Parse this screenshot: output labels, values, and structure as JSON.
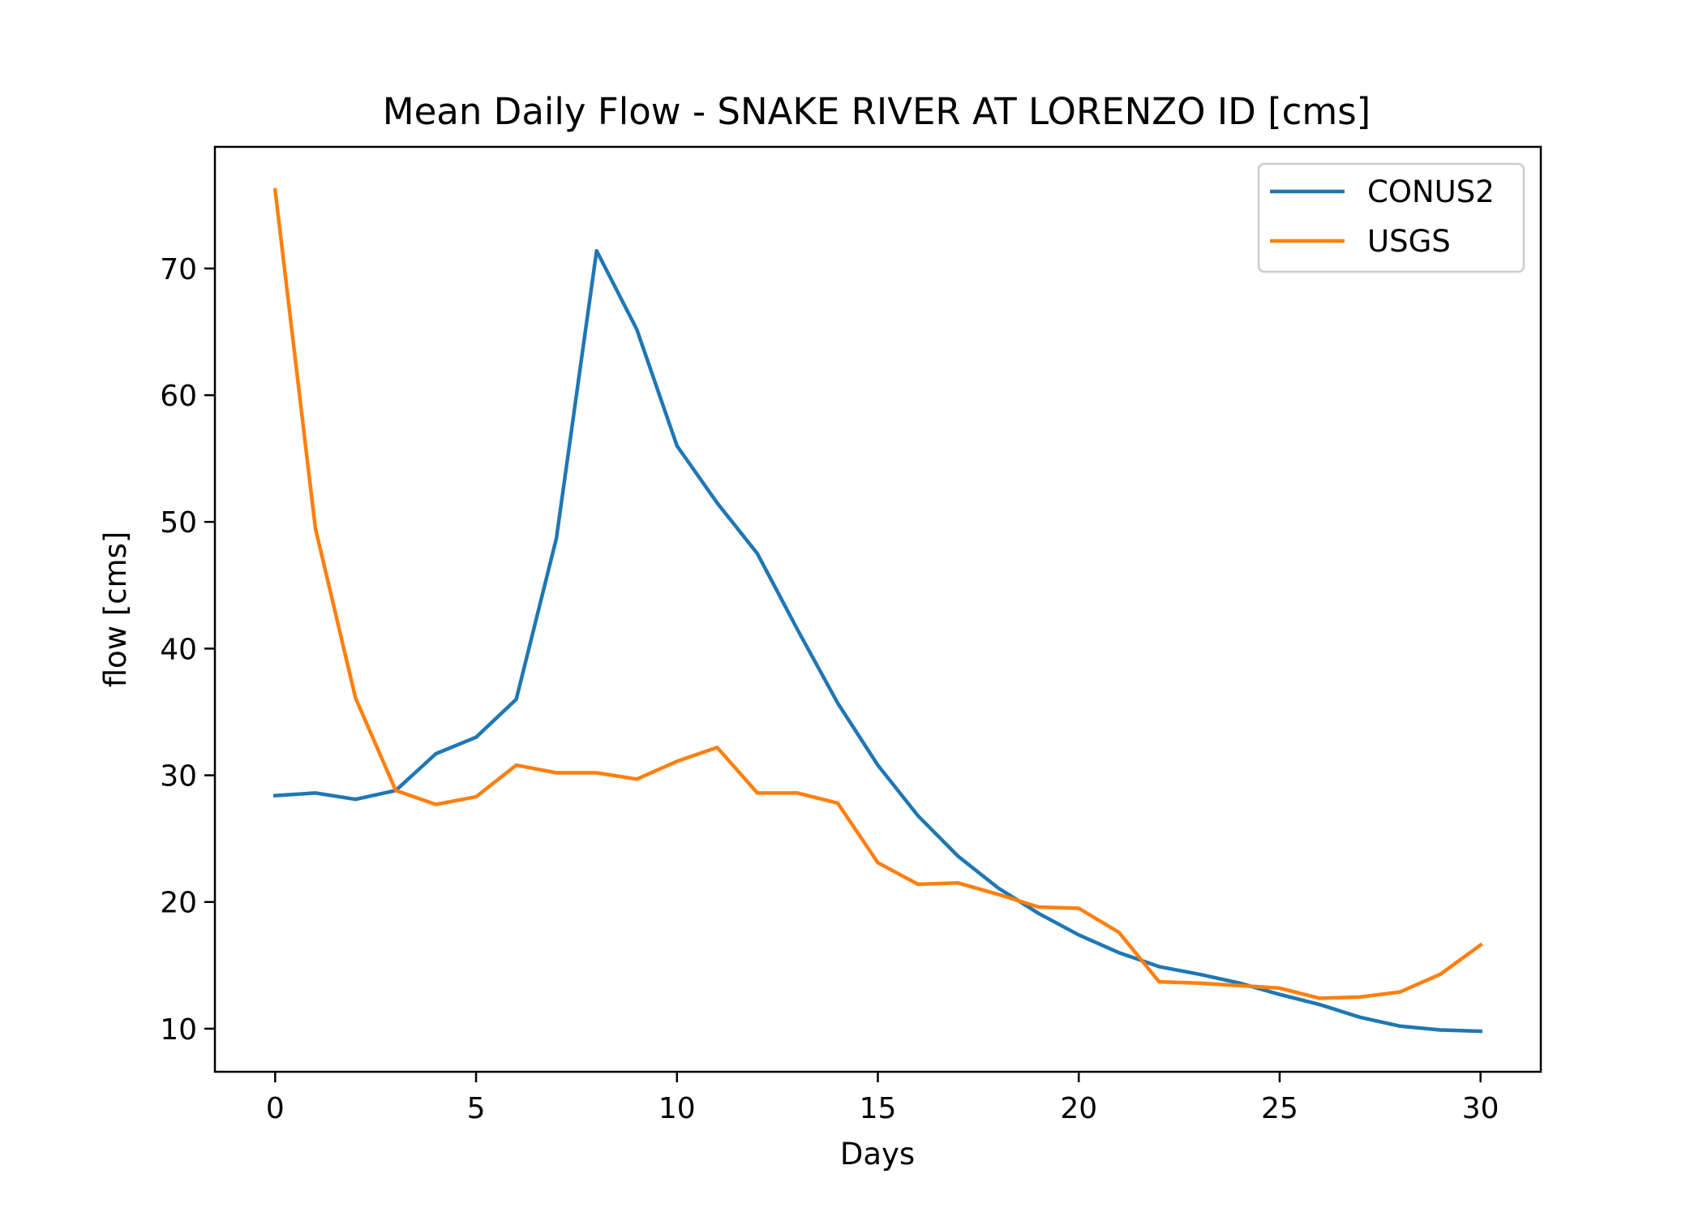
{
  "chart_data": {
    "type": "line",
    "title": "Mean Daily Flow - SNAKE RIVER AT LORENZO ID [cms]",
    "xlabel": "Days",
    "ylabel": "flow [cms]",
    "xlim": [
      -1.5,
      31.5
    ],
    "ylim": [
      6.6,
      79.6
    ],
    "xticks": [
      0,
      5,
      10,
      15,
      20,
      25,
      30
    ],
    "yticks": [
      10,
      20,
      30,
      40,
      50,
      60,
      70
    ],
    "grid": false,
    "legend_position": "top-right",
    "x": [
      0,
      1,
      2,
      3,
      4,
      5,
      6,
      7,
      8,
      9,
      10,
      11,
      12,
      13,
      14,
      15,
      16,
      17,
      18,
      19,
      20,
      21,
      22,
      23,
      24,
      25,
      26,
      27,
      28,
      29,
      30
    ],
    "series": [
      {
        "name": "CONUS2",
        "color": "#1f77b4",
        "values": [
          28.4,
          28.6,
          28.1,
          28.8,
          31.7,
          33.0,
          36.0,
          48.7,
          71.4,
          65.2,
          56.0,
          51.5,
          47.5,
          41.5,
          35.7,
          30.8,
          26.8,
          23.6,
          21.1,
          19.1,
          17.4,
          16.0,
          14.9,
          14.3,
          13.6,
          12.7,
          11.9,
          10.9,
          10.2,
          9.9,
          9.8
        ]
      },
      {
        "name": "USGS",
        "color": "#ff7f0e",
        "values": [
          76.2,
          49.5,
          36.1,
          28.8,
          27.7,
          28.3,
          30.8,
          30.2,
          30.2,
          29.7,
          31.1,
          32.2,
          28.6,
          28.6,
          27.8,
          23.1,
          21.4,
          21.5,
          20.6,
          19.6,
          19.5,
          17.6,
          13.7,
          13.6,
          13.4,
          13.2,
          12.4,
          12.5,
          12.9,
          14.3,
          16.6
        ]
      }
    ]
  }
}
